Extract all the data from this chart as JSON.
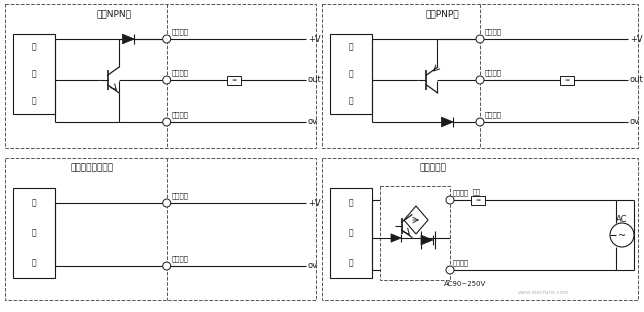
{
  "bg_color": "#ffffff",
  "line_color": "#1a1a1a",
  "dash_color": "#555555",
  "title_npn": "直流NPN型",
  "title_pnp": "直流PNP型",
  "title_emitter": "直流对射式发射器",
  "title_ac": "交流二线型",
  "label_red_brown": "红（棕）",
  "label_yellow_black": "黄（黑）",
  "label_blue_blue": "蓝（蓝）",
  "label_pv": "+V",
  "label_ov": "ov",
  "label_out": "out",
  "label_main": [
    "主",
    "电",
    "路"
  ],
  "label_ac_voltage": "AC90~250V",
  "label_ac": "AC",
  "label_load": "负载",
  "watermark": "www.elecfans.com",
  "fig_w": 6.44,
  "fig_h": 3.12,
  "dpi": 100
}
